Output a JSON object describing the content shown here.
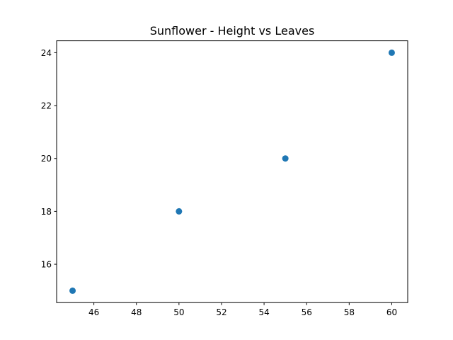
{
  "chart_data": {
    "type": "scatter",
    "title": "Sunflower - Height vs Leaves",
    "xlabel": "",
    "ylabel": "",
    "x": [
      45,
      50,
      55,
      60
    ],
    "y": [
      15,
      18,
      20,
      24
    ],
    "xlim": [
      44.25,
      60.75
    ],
    "ylim": [
      14.55,
      24.45
    ],
    "xticks": [
      46,
      48,
      50,
      52,
      54,
      56,
      58,
      60
    ],
    "yticks": [
      16,
      18,
      20,
      22,
      24
    ],
    "grid": false,
    "legend": "none",
    "marker_color": "#1f77b4"
  }
}
